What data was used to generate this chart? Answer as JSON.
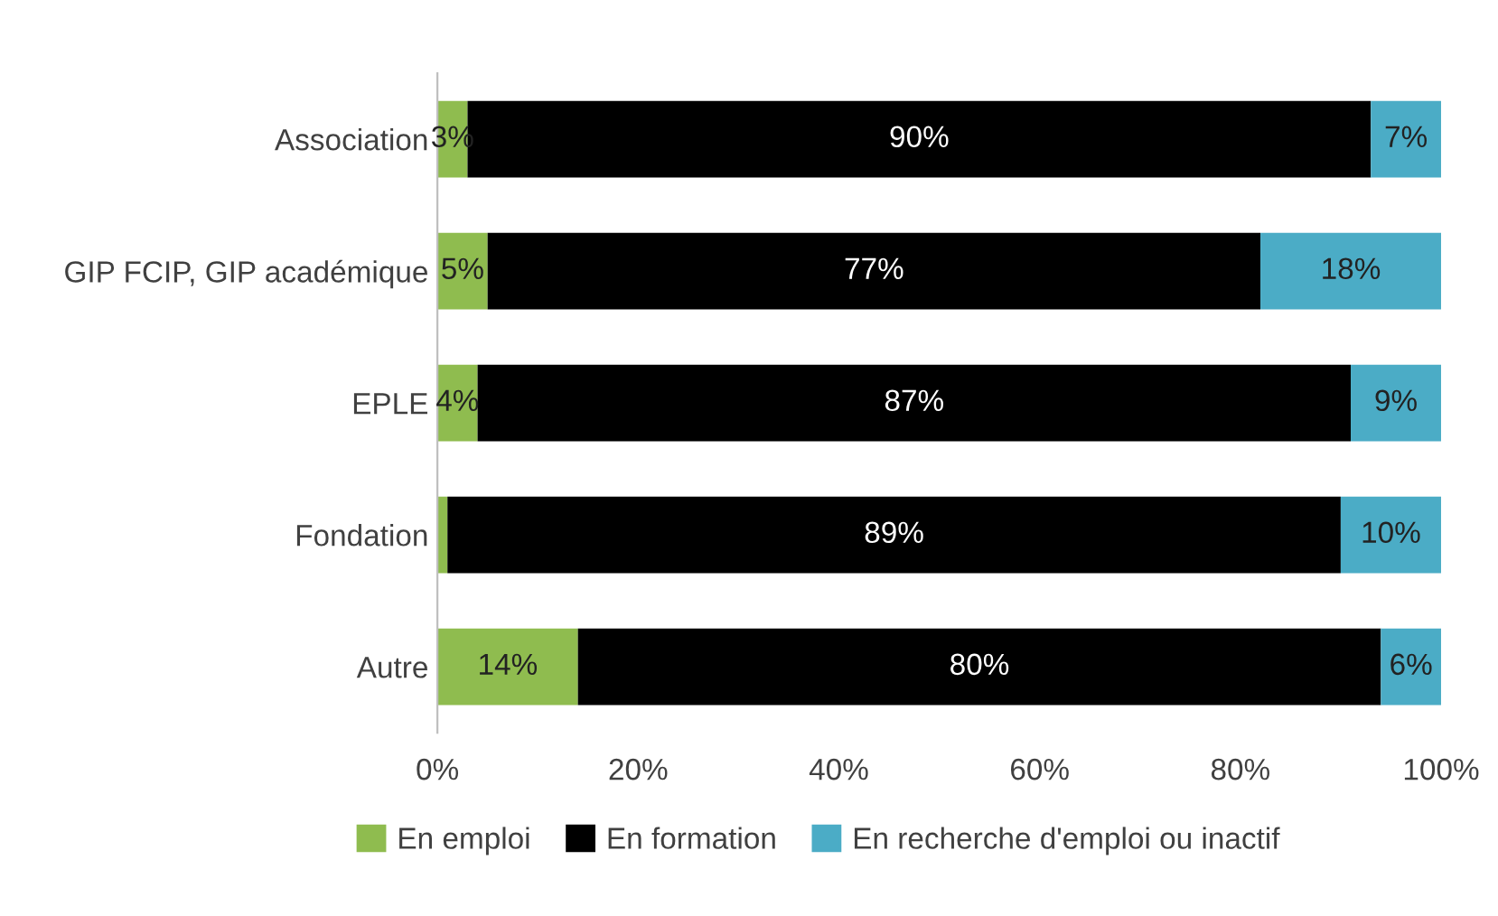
{
  "chart_data": {
    "type": "bar",
    "orientation": "horizontal",
    "stacked": true,
    "categories": [
      "Association",
      "GIP FCIP, GIP académique",
      "EPLE",
      "Fondation",
      "Autre"
    ],
    "series": [
      {
        "name": "En emploi",
        "color": "#8fbc4f",
        "values": [
          3,
          5,
          4,
          1,
          14
        ],
        "value_labels": [
          "3%",
          "5%",
          "4%",
          null,
          "14%"
        ]
      },
      {
        "name": "En formation",
        "color": "#000000",
        "values": [
          90,
          77,
          87,
          89,
          80
        ],
        "value_labels": [
          "90%",
          "77%",
          "87%",
          "89%",
          "80%"
        ]
      },
      {
        "name": "En recherche d'emploi ou inactif",
        "color": "#4bacc6",
        "values": [
          7,
          18,
          9,
          10,
          6
        ],
        "value_labels": [
          "7%",
          "18%",
          "9%",
          "10%",
          "6%"
        ]
      }
    ],
    "xlim": [
      0,
      100
    ],
    "xticks": [
      {
        "value": 0,
        "label": "0%"
      },
      {
        "value": 20,
        "label": "20%"
      },
      {
        "value": 40,
        "label": "40%"
      },
      {
        "value": 60,
        "label": "60%"
      },
      {
        "value": 80,
        "label": "80%"
      },
      {
        "value": 100,
        "label": "100%"
      }
    ],
    "grid": false,
    "legend": "bottom"
  }
}
